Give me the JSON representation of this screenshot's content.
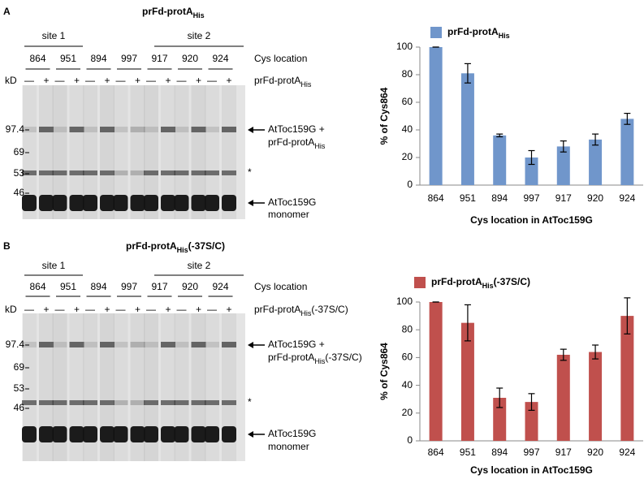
{
  "panels": [
    {
      "label": "A",
      "title": [
        "prFd-protA",
        "His"
      ],
      "sites": [
        "site 1",
        "site 2"
      ],
      "cys": [
        "864",
        "951",
        "894",
        "997",
        "917",
        "920",
        "924"
      ],
      "cys_label": "Cys location",
      "kd": "kD",
      "lanes": [
        "—",
        "+",
        "—",
        "+",
        "—",
        "+",
        "—",
        "+",
        "—",
        "+",
        "—",
        "+",
        "—",
        "+"
      ],
      "treatment": [
        "prFd-protA",
        "His"
      ],
      "markers": [
        "97.4",
        "69",
        "53",
        "46"
      ],
      "annotations": [
        {
          "lines": [
            [
              "AtToc159G +"
            ],
            [
              "prFd-protA",
              "His"
            ]
          ]
        },
        {
          "lines": [
            [
              "*"
            ]
          ]
        },
        {
          "lines": [
            [
              "AtToc159G"
            ],
            [
              "monomer"
            ]
          ]
        }
      ]
    },
    {
      "label": "B",
      "title": [
        "prFd-protA",
        "His",
        "(-37S/C)"
      ],
      "sites": [
        "site 1",
        "site 2"
      ],
      "cys": [
        "864",
        "951",
        "894",
        "997",
        "917",
        "920",
        "924"
      ],
      "cys_label": "Cys location",
      "kd": "kD",
      "lanes": [
        "—",
        "+",
        "—",
        "+",
        "—",
        "+",
        "—",
        "+",
        "—",
        "+",
        "—",
        "+",
        "—",
        "+"
      ],
      "treatment": [
        "prFd-protA",
        "His",
        "(-37S/C)"
      ],
      "markers": [
        "97.4",
        "69",
        "53",
        "46"
      ],
      "annotations": [
        {
          "lines": [
            [
              "AtToc159G +"
            ],
            [
              "prFd-protA",
              "His",
              "(-37S/C)"
            ]
          ]
        },
        {
          "lines": [
            [
              "*"
            ]
          ]
        },
        {
          "lines": [
            [
              "AtToc159G"
            ],
            [
              "monomer"
            ]
          ]
        }
      ]
    }
  ],
  "chart_data": [
    {
      "type": "bar",
      "categories": [
        "864",
        "951",
        "894",
        "997",
        "917",
        "920",
        "924"
      ],
      "series": [
        {
          "name": [
            "prFd-protA",
            "His"
          ],
          "color": "#7096cb",
          "values": [
            100,
            81,
            36,
            20,
            28,
            33,
            48
          ],
          "errors": [
            0,
            7,
            1,
            5,
            4,
            4,
            4
          ]
        }
      ],
      "xlabel": "Cys location in AtToc159G",
      "ylabel": "% of Cys864",
      "ylim": [
        0,
        100
      ],
      "yticks": [
        0,
        20,
        40,
        60,
        80,
        100
      ]
    },
    {
      "type": "bar",
      "categories": [
        "864",
        "951",
        "894",
        "997",
        "917",
        "920",
        "924"
      ],
      "series": [
        {
          "name": [
            "prFd-protA",
            "His",
            "(-37S/C)"
          ],
          "color": "#c0504d",
          "values": [
            100,
            85,
            31,
            28,
            62,
            64,
            90
          ],
          "errors": [
            0,
            13,
            7,
            6,
            4,
            5,
            13
          ]
        }
      ],
      "xlabel": "Cys location in AtToc159G",
      "ylabel": "% of Cys864",
      "ylim": [
        0,
        100
      ],
      "yticks": [
        0,
        20,
        40,
        60,
        80,
        100
      ]
    }
  ]
}
